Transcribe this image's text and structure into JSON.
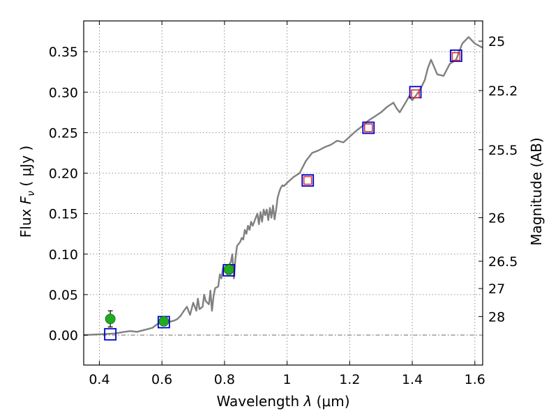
{
  "chart_data": {
    "type": "scatter",
    "xlabel": {
      "prefix": "Wavelength  ",
      "symbol": "λ",
      "unit": " (μm)"
    },
    "ylabel": {
      "prefix": "Flux  ",
      "symbol": "F",
      "subscript": "ν",
      "unit": "  ( μJy )"
    },
    "y2label": "Magnitude (AB)",
    "xlim": [
      0.35,
      1.625
    ],
    "ylim": [
      -0.037,
      0.388
    ],
    "grid": true,
    "x_ticks": [
      {
        "value": 0.4,
        "label": "0.4"
      },
      {
        "value": 0.6,
        "label": "0.6"
      },
      {
        "value": 0.8,
        "label": "0.8"
      },
      {
        "value": 1.0,
        "label": "1"
      },
      {
        "value": 1.2,
        "label": "1.2"
      },
      {
        "value": 1.4,
        "label": "1.4"
      },
      {
        "value": 1.6,
        "label": "1.6"
      }
    ],
    "y_ticks": [
      {
        "value": 0.0,
        "label": "0.00"
      },
      {
        "value": 0.05,
        "label": "0.05"
      },
      {
        "value": 0.1,
        "label": "0.10"
      },
      {
        "value": 0.15,
        "label": "0.15"
      },
      {
        "value": 0.2,
        "label": "0.20"
      },
      {
        "value": 0.25,
        "label": "0.25"
      },
      {
        "value": 0.3,
        "label": "0.30"
      },
      {
        "value": 0.35,
        "label": "0.35"
      }
    ],
    "magnitude_ticks": [
      {
        "label": "25",
        "flux": 0.363
      },
      {
        "label": "25.2",
        "flux": 0.302
      },
      {
        "label": "25.5",
        "flux": 0.229
      },
      {
        "label": "26",
        "flux": 0.145
      },
      {
        "label": "26.5",
        "flux": 0.0912
      },
      {
        "label": "27",
        "flux": 0.0575
      },
      {
        "label": "28",
        "flux": 0.0229
      }
    ],
    "series": [
      {
        "kind": "model-spectrum",
        "color": "#808080",
        "x": [
          0.35,
          0.4,
          0.45,
          0.48,
          0.5,
          0.52,
          0.55,
          0.57,
          0.58,
          0.59,
          0.6,
          0.62,
          0.64,
          0.65,
          0.66,
          0.67,
          0.68,
          0.69,
          0.7,
          0.71,
          0.715,
          0.72,
          0.73,
          0.735,
          0.74,
          0.75,
          0.755,
          0.76,
          0.765,
          0.77,
          0.78,
          0.785,
          0.79,
          0.795,
          0.8,
          0.805,
          0.81,
          0.82,
          0.825,
          0.83,
          0.835,
          0.84,
          0.85,
          0.855,
          0.86,
          0.865,
          0.87,
          0.875,
          0.88,
          0.885,
          0.89,
          0.9,
          0.905,
          0.91,
          0.915,
          0.92,
          0.925,
          0.93,
          0.935,
          0.94,
          0.945,
          0.95,
          0.955,
          0.96,
          0.965,
          0.97,
          0.975,
          0.98,
          0.985,
          0.99,
          1.0,
          1.02,
          1.04,
          1.06,
          1.08,
          1.1,
          1.12,
          1.14,
          1.16,
          1.18,
          1.2,
          1.22,
          1.24,
          1.26,
          1.28,
          1.3,
          1.32,
          1.34,
          1.35,
          1.36,
          1.38,
          1.39,
          1.4,
          1.42,
          1.43,
          1.44,
          1.45,
          1.46,
          1.48,
          1.5,
          1.52,
          1.54,
          1.56,
          1.58,
          1.6,
          1.625
        ],
        "y": [
          0.0,
          0.001,
          0.002,
          0.004,
          0.005,
          0.004,
          0.007,
          0.009,
          0.012,
          0.015,
          0.013,
          0.016,
          0.018,
          0.02,
          0.024,
          0.03,
          0.035,
          0.025,
          0.04,
          0.03,
          0.045,
          0.032,
          0.035,
          0.05,
          0.042,
          0.038,
          0.055,
          0.03,
          0.048,
          0.058,
          0.06,
          0.075,
          0.07,
          0.083,
          0.082,
          0.078,
          0.085,
          0.09,
          0.1,
          0.07,
          0.095,
          0.11,
          0.115,
          0.12,
          0.118,
          0.13,
          0.125,
          0.135,
          0.13,
          0.14,
          0.135,
          0.145,
          0.15,
          0.137,
          0.152,
          0.14,
          0.155,
          0.148,
          0.155,
          0.142,
          0.157,
          0.145,
          0.16,
          0.143,
          0.155,
          0.17,
          0.177,
          0.182,
          0.185,
          0.184,
          0.188,
          0.195,
          0.2,
          0.215,
          0.225,
          0.228,
          0.232,
          0.235,
          0.24,
          0.238,
          0.245,
          0.252,
          0.258,
          0.265,
          0.27,
          0.275,
          0.282,
          0.287,
          0.28,
          0.275,
          0.288,
          0.295,
          0.29,
          0.3,
          0.307,
          0.315,
          0.33,
          0.34,
          0.322,
          0.32,
          0.335,
          0.34,
          0.36,
          0.368,
          0.36,
          0.355
        ]
      },
      {
        "kind": "model-photometry",
        "marker": "square",
        "color": "#0000cc",
        "x": [
          0.435,
          0.606,
          0.814,
          1.066,
          1.26,
          1.41,
          1.54
        ],
        "y": [
          0.001,
          0.016,
          0.08,
          0.191,
          0.256,
          0.3,
          0.345
        ]
      },
      {
        "kind": "upper-photometry",
        "marker": "square",
        "color": "#dd3333",
        "x": [
          1.066,
          1.26,
          1.41,
          1.54
        ],
        "y": [
          0.191,
          0.256,
          0.298,
          0.344
        ]
      },
      {
        "kind": "observed-photometry",
        "marker": "circle",
        "color": "#22aa22",
        "x": [
          0.435,
          0.606,
          0.814
        ],
        "y": [
          0.02,
          0.017,
          0.081
        ],
        "err": [
          0.01,
          0.005,
          0.006
        ]
      }
    ]
  }
}
